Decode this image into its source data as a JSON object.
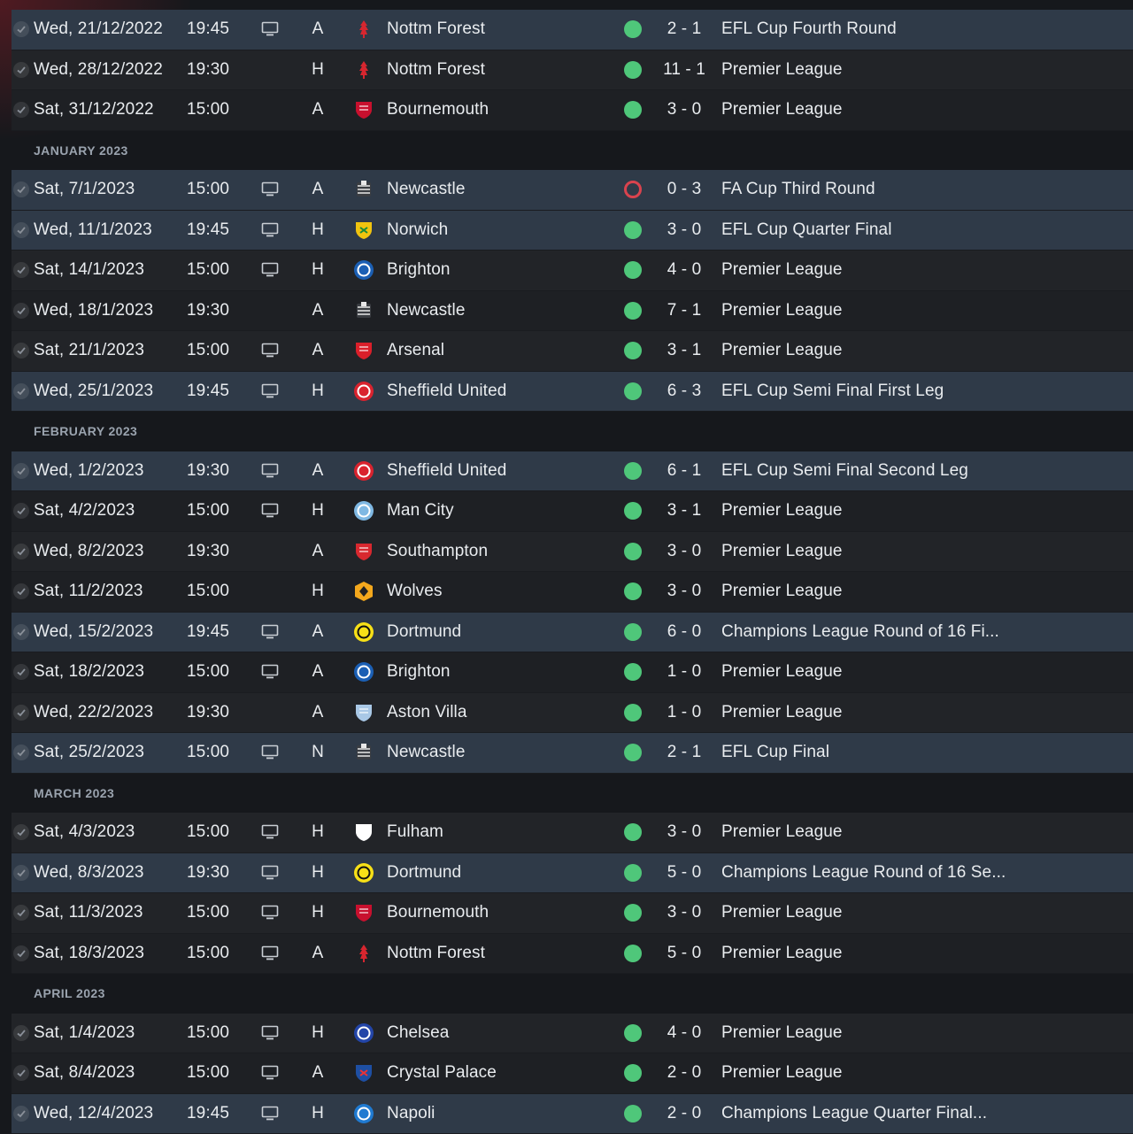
{
  "rows": [
    {
      "kind": "fixture",
      "date": "Wed, 21/12/2022",
      "time": "19:45",
      "tv": true,
      "venue": "A",
      "opponent": "Nottm Forest",
      "badge": "nottm-forest",
      "result": "win",
      "score": "2 - 1",
      "competition": "EFL Cup Fourth Round",
      "highlight": true
    },
    {
      "kind": "fixture",
      "date": "Wed, 28/12/2022",
      "time": "19:30",
      "tv": false,
      "venue": "H",
      "opponent": "Nottm Forest",
      "badge": "nottm-forest",
      "result": "win",
      "score": "11 - 1",
      "competition": "Premier League"
    },
    {
      "kind": "fixture",
      "date": "Sat, 31/12/2022",
      "time": "15:00",
      "tv": false,
      "venue": "A",
      "opponent": "Bournemouth",
      "badge": "bournemouth",
      "result": "win",
      "score": "3 - 0",
      "competition": "Premier League"
    },
    {
      "kind": "month",
      "label": "JANUARY 2023"
    },
    {
      "kind": "fixture",
      "date": "Sat, 7/1/2023",
      "time": "15:00",
      "tv": true,
      "venue": "A",
      "opponent": "Newcastle",
      "badge": "newcastle",
      "result": "loss",
      "score": "0 - 3",
      "competition": "FA Cup Third Round",
      "highlight": true
    },
    {
      "kind": "fixture",
      "date": "Wed, 11/1/2023",
      "time": "19:45",
      "tv": true,
      "venue": "H",
      "opponent": "Norwich",
      "badge": "norwich",
      "result": "win",
      "score": "3 - 0",
      "competition": "EFL Cup Quarter Final",
      "highlight": true
    },
    {
      "kind": "fixture",
      "date": "Sat, 14/1/2023",
      "time": "15:00",
      "tv": true,
      "venue": "H",
      "opponent": "Brighton",
      "badge": "brighton",
      "result": "win",
      "score": "4 - 0",
      "competition": "Premier League"
    },
    {
      "kind": "fixture",
      "date": "Wed, 18/1/2023",
      "time": "19:30",
      "tv": false,
      "venue": "A",
      "opponent": "Newcastle",
      "badge": "newcastle",
      "result": "win",
      "score": "7 - 1",
      "competition": "Premier League"
    },
    {
      "kind": "fixture",
      "date": "Sat, 21/1/2023",
      "time": "15:00",
      "tv": true,
      "venue": "A",
      "opponent": "Arsenal",
      "badge": "arsenal",
      "result": "win",
      "score": "3 - 1",
      "competition": "Premier League"
    },
    {
      "kind": "fixture",
      "date": "Wed, 25/1/2023",
      "time": "19:45",
      "tv": true,
      "venue": "H",
      "opponent": "Sheffield United",
      "badge": "sheffield-united",
      "result": "win",
      "score": "6 - 3",
      "competition": "EFL Cup Semi Final First Leg",
      "highlight": true
    },
    {
      "kind": "month",
      "label": "FEBRUARY 2023"
    },
    {
      "kind": "fixture",
      "date": "Wed, 1/2/2023",
      "time": "19:30",
      "tv": true,
      "venue": "A",
      "opponent": "Sheffield United",
      "badge": "sheffield-united",
      "result": "win",
      "score": "6 - 1",
      "competition": "EFL Cup Semi Final Second Leg",
      "highlight": true
    },
    {
      "kind": "fixture",
      "date": "Sat, 4/2/2023",
      "time": "15:00",
      "tv": true,
      "venue": "H",
      "opponent": "Man City",
      "badge": "man-city",
      "result": "win",
      "score": "3 - 1",
      "competition": "Premier League"
    },
    {
      "kind": "fixture",
      "date": "Wed, 8/2/2023",
      "time": "19:30",
      "tv": false,
      "venue": "A",
      "opponent": "Southampton",
      "badge": "southampton",
      "result": "win",
      "score": "3 - 0",
      "competition": "Premier League"
    },
    {
      "kind": "fixture",
      "date": "Sat, 11/2/2023",
      "time": "15:00",
      "tv": false,
      "venue": "H",
      "opponent": "Wolves",
      "badge": "wolves",
      "result": "win",
      "score": "3 - 0",
      "competition": "Premier League"
    },
    {
      "kind": "fixture",
      "date": "Wed, 15/2/2023",
      "time": "19:45",
      "tv": true,
      "venue": "A",
      "opponent": "Dortmund",
      "badge": "dortmund",
      "result": "win",
      "score": "6 - 0",
      "competition": "Champions League Round of 16 Fi...",
      "highlight": true
    },
    {
      "kind": "fixture",
      "date": "Sat, 18/2/2023",
      "time": "15:00",
      "tv": true,
      "venue": "A",
      "opponent": "Brighton",
      "badge": "brighton",
      "result": "win",
      "score": "1 - 0",
      "competition": "Premier League"
    },
    {
      "kind": "fixture",
      "date": "Wed, 22/2/2023",
      "time": "19:30",
      "tv": false,
      "venue": "A",
      "opponent": "Aston Villa",
      "badge": "aston-villa",
      "result": "win",
      "score": "1 - 0",
      "competition": "Premier League"
    },
    {
      "kind": "fixture",
      "date": "Sat, 25/2/2023",
      "time": "15:00",
      "tv": true,
      "venue": "N",
      "opponent": "Newcastle",
      "badge": "newcastle",
      "result": "win",
      "score": "2 - 1",
      "competition": "EFL Cup Final",
      "highlight": true
    },
    {
      "kind": "month",
      "label": "MARCH 2023"
    },
    {
      "kind": "fixture",
      "date": "Sat, 4/3/2023",
      "time": "15:00",
      "tv": true,
      "venue": "H",
      "opponent": "Fulham",
      "badge": "fulham",
      "result": "win",
      "score": "3 - 0",
      "competition": "Premier League"
    },
    {
      "kind": "fixture",
      "date": "Wed, 8/3/2023",
      "time": "19:30",
      "tv": true,
      "venue": "H",
      "opponent": "Dortmund",
      "badge": "dortmund",
      "result": "win",
      "score": "5 - 0",
      "competition": "Champions League Round of 16 Se...",
      "highlight": true
    },
    {
      "kind": "fixture",
      "date": "Sat, 11/3/2023",
      "time": "15:00",
      "tv": true,
      "venue": "H",
      "opponent": "Bournemouth",
      "badge": "bournemouth",
      "result": "win",
      "score": "3 - 0",
      "competition": "Premier League"
    },
    {
      "kind": "fixture",
      "date": "Sat, 18/3/2023",
      "time": "15:00",
      "tv": true,
      "venue": "A",
      "opponent": "Nottm Forest",
      "badge": "nottm-forest",
      "result": "win",
      "score": "5 - 0",
      "competition": "Premier League"
    },
    {
      "kind": "month",
      "label": "APRIL 2023"
    },
    {
      "kind": "fixture",
      "date": "Sat, 1/4/2023",
      "time": "15:00",
      "tv": true,
      "venue": "H",
      "opponent": "Chelsea",
      "badge": "chelsea",
      "result": "win",
      "score": "4 - 0",
      "competition": "Premier League"
    },
    {
      "kind": "fixture",
      "date": "Sat, 8/4/2023",
      "time": "15:00",
      "tv": true,
      "venue": "A",
      "opponent": "Crystal Palace",
      "badge": "crystal-palace",
      "result": "win",
      "score": "2 - 0",
      "competition": "Premier League"
    },
    {
      "kind": "fixture",
      "date": "Wed, 12/4/2023",
      "time": "19:45",
      "tv": true,
      "venue": "H",
      "opponent": "Napoli",
      "badge": "napoli",
      "result": "win",
      "score": "2 - 0",
      "competition": "Champions League Quarter Final...",
      "highlight": true
    }
  ],
  "badge_colors": {
    "nottm-forest": "#d7262f",
    "bournemouth": "#c8102e",
    "newcastle": "#e8e8e8",
    "norwich": "#f1c40f",
    "brighton": "#1b5fb4",
    "arsenal": "#db1f2a",
    "sheffield-united": "#d9232e",
    "man-city": "#7fb8e3",
    "southampton": "#d8282f",
    "wolves": "#f4a81d",
    "dortmund": "#f7e017",
    "aston-villa": "#a9c8e6",
    "fulham": "#ffffff",
    "chelsea": "#2345a8",
    "crystal-palace": "#1e4fa3",
    "napoli": "#1f7ad1"
  }
}
